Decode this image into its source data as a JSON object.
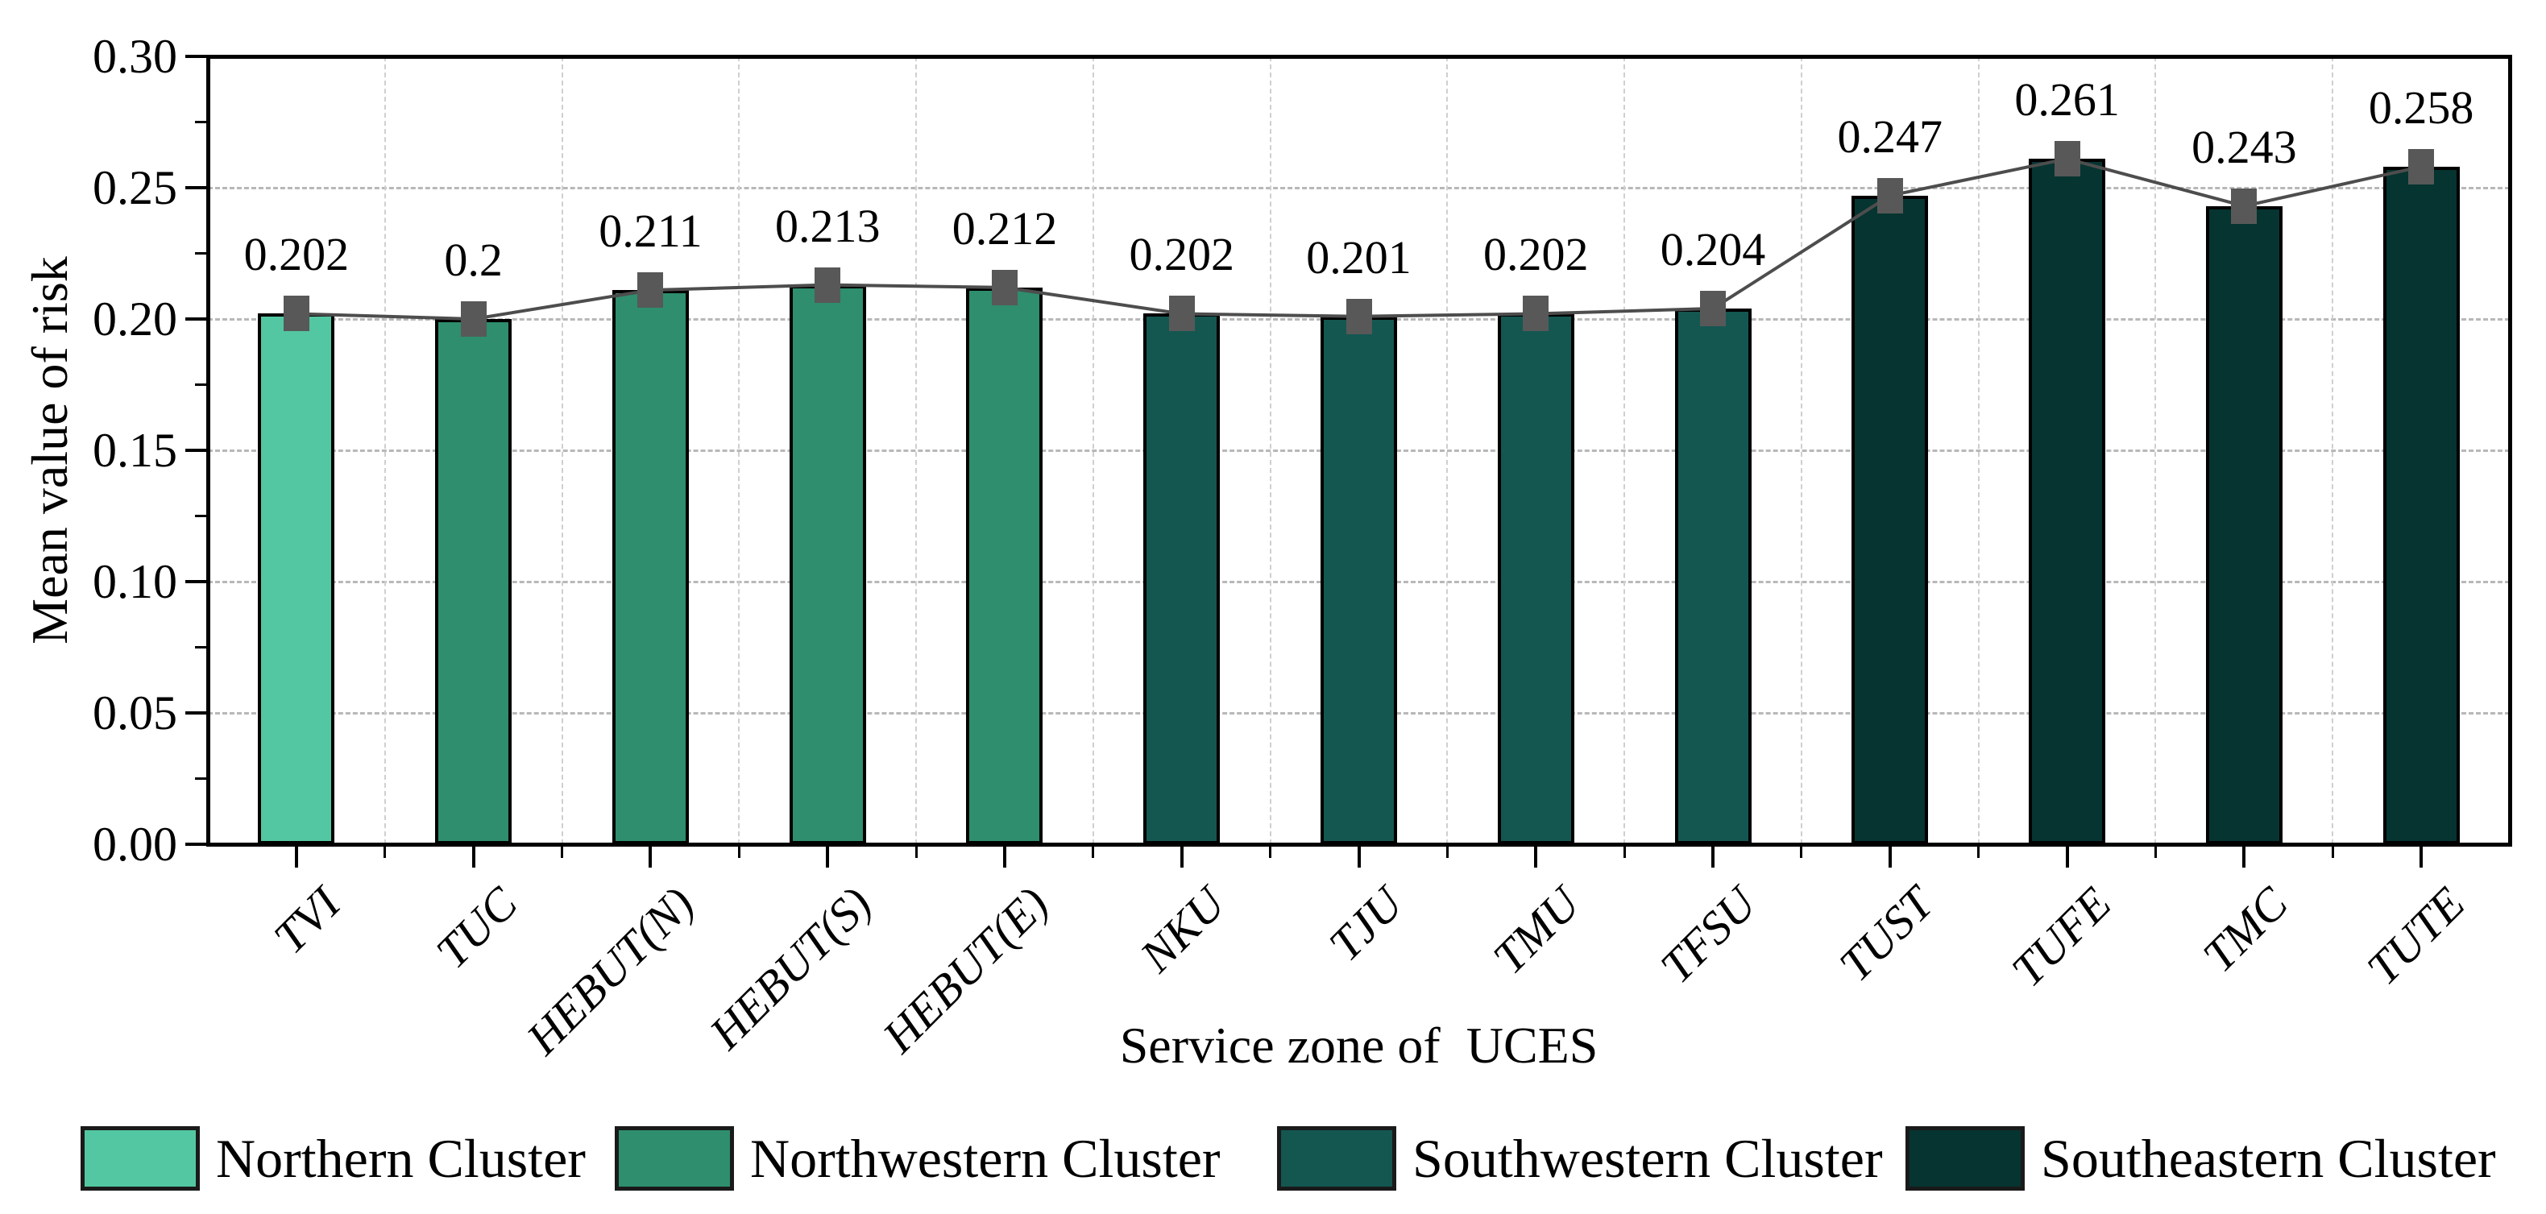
{
  "chart_data": {
    "type": "bar",
    "title": "",
    "categories": [
      "TVI",
      "TUC",
      "HEBUT(N)",
      "HEBUT(S)",
      "HEBUT(E)",
      "NKU",
      "TJU",
      "TMU",
      "TFSU",
      "TUST",
      "TUFE",
      "TMC",
      "TUTE"
    ],
    "values": [
      0.202,
      0.2,
      0.211,
      0.213,
      0.212,
      0.202,
      0.201,
      0.202,
      0.204,
      0.247,
      0.261,
      0.243,
      0.258
    ],
    "value_labels": [
      "0.202",
      "0.2",
      "0.211",
      "0.213",
      "0.212",
      "0.202",
      "0.201",
      "0.202",
      "0.204",
      "0.247",
      "0.261",
      "0.243",
      "0.258"
    ],
    "bar_clusters": [
      "northern",
      "northwestern",
      "northwestern",
      "northwestern",
      "northwestern",
      "southwestern",
      "southwestern",
      "southwestern",
      "southwestern",
      "southeastern",
      "southeastern",
      "southeastern",
      "southeastern"
    ],
    "cluster_colors": {
      "northern": "#53c7a1",
      "northwestern": "#2e8e6e",
      "southwestern": "#145751",
      "southeastern": "#063430"
    },
    "overlay_line": {
      "style": "line with square markers at bar tops",
      "line_color": "#4d4d4d",
      "marker": "square",
      "marker_color": "#585858"
    },
    "xlabel": "Service zone of  UCES",
    "ylabel": "Mean value of risk",
    "ylim": [
      0,
      0.3
    ],
    "y_ticks": [
      "0.00",
      "0.05",
      "0.10",
      "0.15",
      "0.20",
      "0.25",
      "0.30"
    ],
    "y_tick_values": [
      0,
      0.05,
      0.1,
      0.15,
      0.2,
      0.25,
      0.3
    ],
    "grid": "dashed horizontal at major y ticks, dashed vertical at category boundaries",
    "legend_position": "bottom",
    "legend": [
      {
        "label": "Northern Cluster",
        "color": "#53c7a1"
      },
      {
        "label": "Northwestern Cluster",
        "color": "#2e8e6e"
      },
      {
        "label": "Southwestern Cluster",
        "color": "#145751"
      },
      {
        "label": "Southeastern Cluster",
        "color": "#063430"
      }
    ]
  }
}
